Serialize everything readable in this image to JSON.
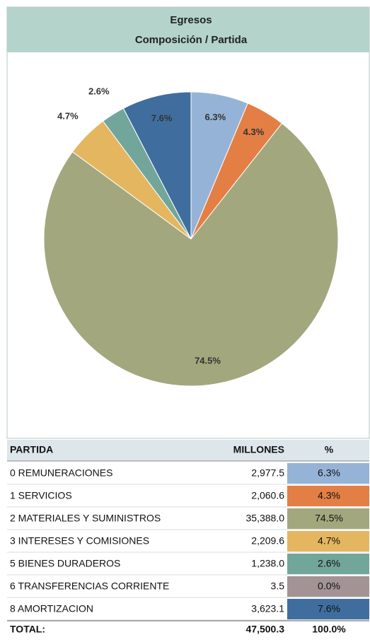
{
  "chart_data": {
    "type": "pie",
    "title": [
      "Egresos",
      "Composición / Partida"
    ],
    "categories": [
      "0 REMUNERACIONES",
      "1 SERVICIOS",
      "2 MATERIALES Y SUMINISTROS",
      "3 INTERESES Y COMISIONES",
      "5 BIENES DURADEROS",
      "6 TRANSFERENCIAS CORRIENTE",
      "8 AMORTIZACION"
    ],
    "values": [
      6.3,
      4.3,
      74.5,
      4.7,
      2.6,
      0.0,
      7.6
    ],
    "value_labels": [
      "6.3%",
      "4.3%",
      "74.5%",
      "4.7%",
      "2.6%",
      "0.0%",
      "7.6%"
    ],
    "colors": [
      "#95b3d7",
      "#e37f45",
      "#a3a77e",
      "#e5b660",
      "#72a69a",
      "#a39395",
      "#3f6e9e"
    ]
  },
  "table": {
    "columns": [
      "PARTIDA",
      "MILLONES",
      "%"
    ],
    "millones": [
      "2,977.5",
      "2,060.6",
      "35,388.0",
      "2,209.6",
      "1,238.0",
      "3.5",
      "3,623.1"
    ],
    "total": [
      "TOTAL:",
      "47,500.3",
      "100.0%"
    ]
  }
}
